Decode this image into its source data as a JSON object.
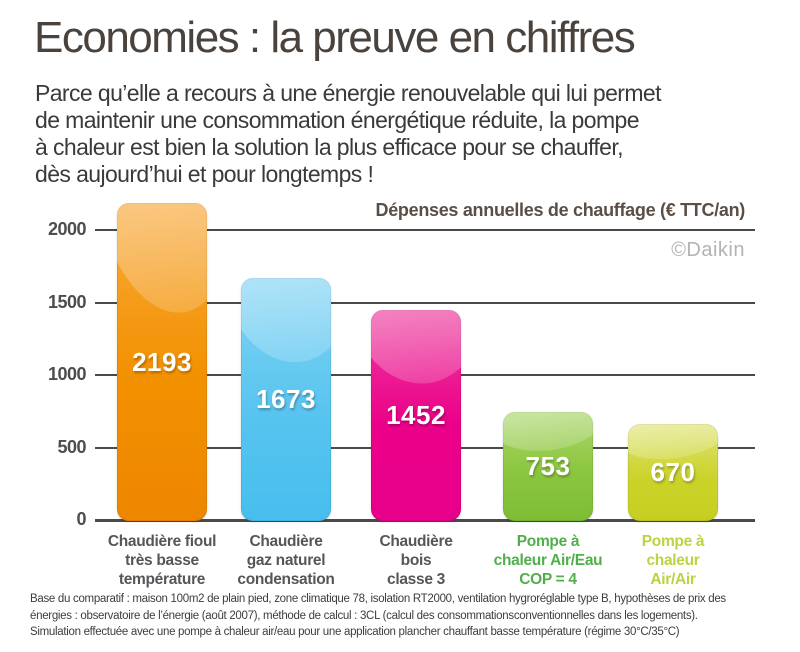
{
  "page": {
    "title": "Economies : la preuve en chiffres",
    "intro_lines": [
      "Parce qu’elle a recours à une énergie renouvelable qui lui permet",
      "de maintenir une consommation énergétique réduite, la pompe",
      "à chaleur est bien la solution la plus efficace pour se chauffer,",
      "dès aujourd’hui et pour longtemps !"
    ],
    "footnote_lines": [
      "Base du comparatif : maison 100m2 de plain pied, zone climatique 78, isolation RT2000, ventilation hygroréglable type B, hypothèses de prix des",
      "énergies : observatoire de l’énergie (août 2007), méthode de calcul : 3CL (calcul des consommationsconventionnelles dans les logements).",
      "Simulation effectuée avec une pompe à chaleur air/eau pour une application plancher chauffant basse température (régime 30°C/35°C)"
    ]
  },
  "chart_data": {
    "type": "bar",
    "title": "Dépenses annuelles de chauffage (€ TTC/an)",
    "watermark": "©Daikin",
    "categories": [
      "Chaudière fioul\ntrès basse\ntempérature",
      "Chaudière\ngaz naturel\ncondensation",
      "Chaudière\nbois\nclasse 3",
      "Pompe à\nchaleur Air/Eau\nCOP = 4",
      "Pompe à\nchaleur\nAir/Air"
    ],
    "values": [
      2193,
      1673,
      1452,
      753,
      670
    ],
    "xlabel": "",
    "ylabel": "",
    "ylim": [
      0,
      2000
    ],
    "yticks": [
      0,
      500,
      1000,
      1500,
      2000
    ],
    "grid": true,
    "legend": false,
    "colors": {
      "title_color": "#5b4e46",
      "watermark_color": "#b3b3b3",
      "grid_color": "#4a4a4a",
      "tick_label_color": "#4d4d4d",
      "value_label_color": "#ffffff",
      "bar_gradients": [
        [
          "#f8a93c",
          "#f29100",
          "#ee8600"
        ],
        [
          "#83d4f4",
          "#58c4ef",
          "#47beee"
        ],
        [
          "#ed3d9e",
          "#eb0089",
          "#e7008a"
        ],
        [
          "#abd66c",
          "#8cc63f",
          "#7dbd34"
        ],
        [
          "#dfe476",
          "#cbd32b",
          "#c6cf20"
        ]
      ],
      "category_label_colors": [
        "#55565a",
        "#55565a",
        "#55565a",
        "#50af4b",
        "#bdd243"
      ]
    }
  }
}
